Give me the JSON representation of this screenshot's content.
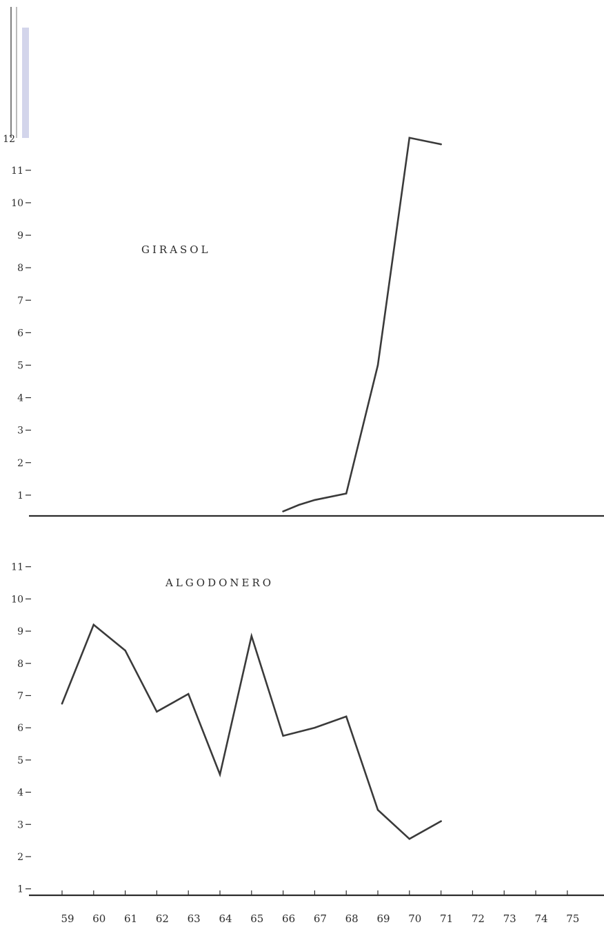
{
  "chart_data": [
    {
      "type": "line",
      "title": "GIRASOL",
      "y_ticks": [
        "1",
        "2",
        "3",
        "4",
        "5",
        "6",
        "7",
        "8",
        "9",
        "10",
        "11",
        "12"
      ],
      "ylim": [
        0.4,
        12
      ],
      "x": [],
      "series": [
        {
          "x": [
            "66",
            "66.5",
            "67",
            "68",
            "69",
            "70",
            "71"
          ],
          "values": [
            0.5,
            0.7,
            0.85,
            1.05,
            5,
            12,
            11.8
          ]
        }
      ],
      "line_color": "#3a3a3a"
    },
    {
      "type": "line",
      "title": "ALGODONERO",
      "y_ticks": [
        "1",
        "2",
        "3",
        "4",
        "5",
        "6",
        "7",
        "8",
        "9",
        "10",
        "11"
      ],
      "ylim": [
        0.8,
        11
      ],
      "x": [
        "59",
        "60",
        "61",
        "62",
        "63",
        "64",
        "65",
        "66",
        "67",
        "68",
        "69",
        "70",
        "71",
        "72",
        "73",
        "74",
        "75"
      ],
      "series": [
        {
          "x": [
            "59",
            "60",
            "61",
            "62",
            "63",
            "64",
            "65",
            "66",
            "67",
            "68",
            "69",
            "70",
            "71"
          ],
          "values": [
            6.75,
            9.2,
            8.4,
            6.5,
            7.05,
            4.55,
            8.85,
            5.75,
            6.0,
            6.35,
            3.45,
            2.55,
            3.1
          ]
        }
      ],
      "line_color": "#3a3a3a"
    }
  ]
}
